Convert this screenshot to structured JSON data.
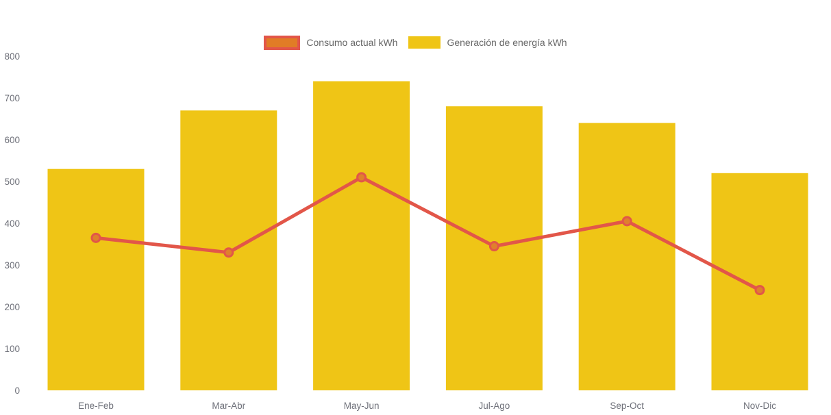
{
  "chart_data": {
    "type": "combo",
    "categories": [
      "Ene-Feb",
      "Mar-Abr",
      "May-Jun",
      "Jul-Ago",
      "Sep-Oct",
      "Nov-Dic"
    ],
    "series": [
      {
        "name": "Consumo actual kWh",
        "type": "line",
        "values": [
          365,
          330,
          510,
          345,
          405,
          240
        ]
      },
      {
        "name": "Generación de energía kWh",
        "type": "bar",
        "values": [
          530,
          670,
          740,
          680,
          640,
          520
        ]
      }
    ],
    "title": "",
    "xlabel": "",
    "ylabel": "",
    "ylim": [
      0,
      800
    ],
    "yticks": [
      "0",
      "100",
      "200",
      "300",
      "400",
      "500",
      "600",
      "700",
      "800"
    ],
    "grid": false,
    "legend_position": "top-center"
  },
  "colors": {
    "bar_fill": "#EFC516",
    "line_stroke": "#E25649",
    "marker_fill": "#E0802C",
    "legend_swatch_border": "#E25649",
    "legend_swatch_fill": "#E17C26",
    "axis_label": "#6E7079",
    "legend_text": "#666666",
    "background": "#FFFFFF"
  }
}
